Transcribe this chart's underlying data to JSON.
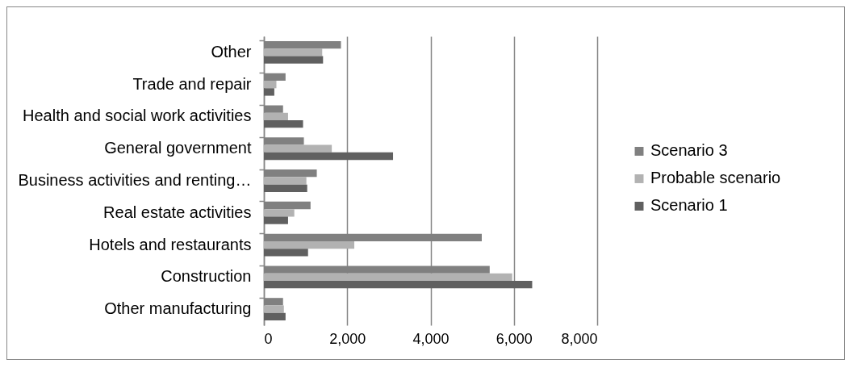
{
  "chart_data": {
    "type": "bar",
    "orientation": "horizontal",
    "categories": [
      "Other",
      "Trade and repair",
      "Health and social work activities",
      "General government",
      "Business activities and renting…",
      "Real estate activities",
      "Hotels and restaurants",
      "Construction",
      "Other manufacturing"
    ],
    "series": [
      {
        "name": "Scenario 3",
        "color": "#808080",
        "values": [
          1850,
          520,
          460,
          960,
          1270,
          1120,
          5230,
          5420,
          460
        ]
      },
      {
        "name": "Probable scenario",
        "color": "#b2b2b2",
        "values": [
          1400,
          300,
          580,
          1630,
          1020,
          730,
          2170,
          5960,
          480
        ]
      },
      {
        "name": "Scenario 1",
        "color": "#606060",
        "values": [
          1420,
          250,
          940,
          3100,
          1040,
          580,
          1060,
          6440,
          520
        ]
      }
    ],
    "xlim": [
      0,
      8000
    ],
    "xticks": [
      0,
      {
        "value": 2000,
        "label": "2,000"
      },
      {
        "value": 4000,
        "label": "4,000"
      },
      {
        "value": 6000,
        "label": "6,000"
      },
      {
        "value": 8000,
        "label": "8,000"
      }
    ],
    "grid": "x",
    "legend": "right"
  }
}
